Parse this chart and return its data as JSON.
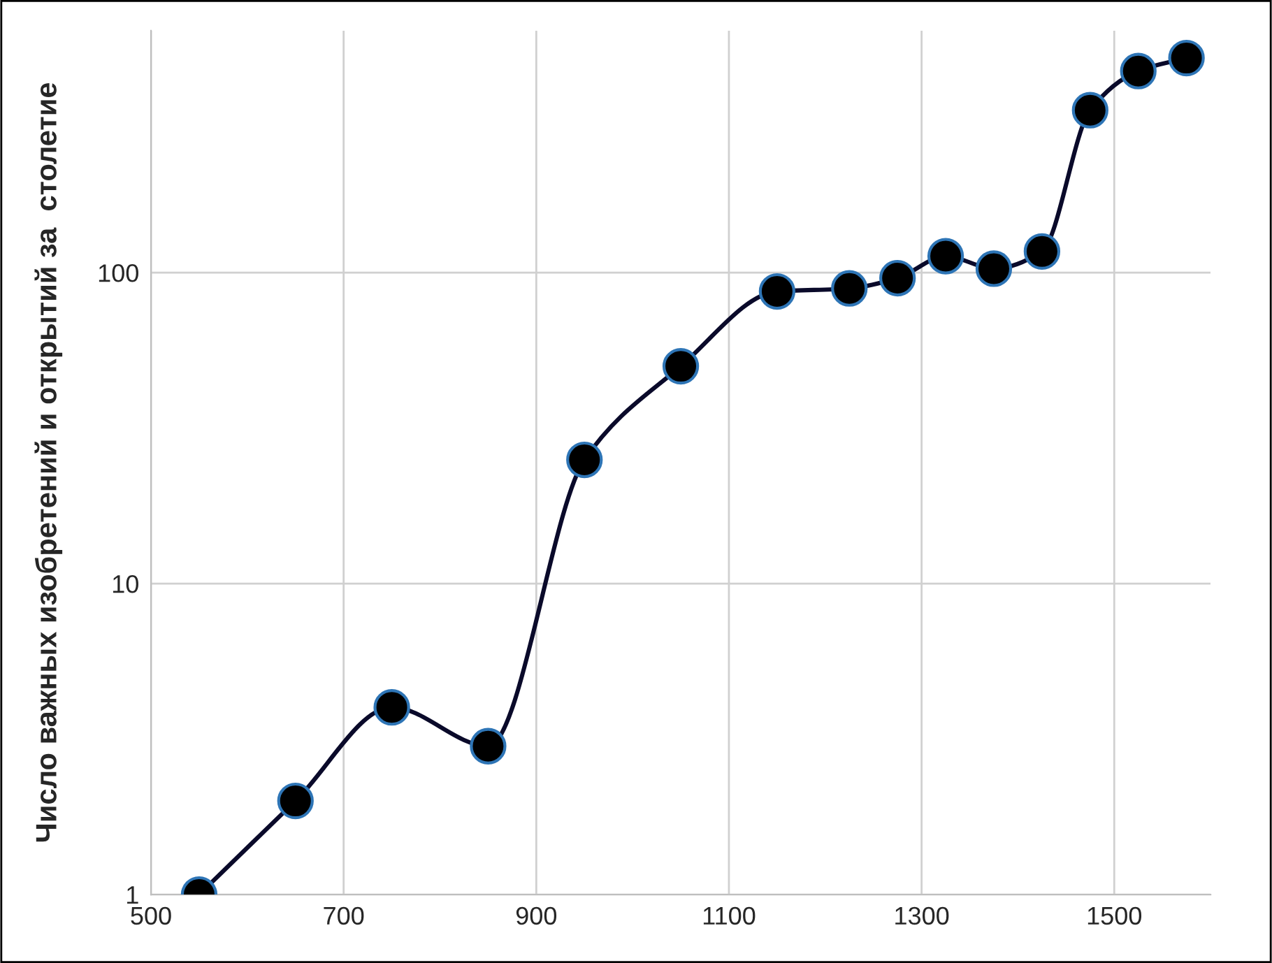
{
  "chart_data": {
    "type": "line",
    "ylabel": "Число важных изобретений и открытий за  столетие",
    "log": "y",
    "xlim": [
      500,
      1600
    ],
    "xticks": [
      500,
      700,
      900,
      1100,
      1300,
      1500
    ],
    "ylim": [
      1,
      600
    ],
    "yticks": [
      1,
      10,
      100
    ],
    "grid": true,
    "marker": "circle",
    "line_style": "solid",
    "series": [
      {
        "color": "#000000",
        "x": [
          550,
          650,
          750,
          850,
          950,
          1050,
          1150,
          1225,
          1275,
          1325,
          1375,
          1425,
          1475,
          1525,
          1575
        ],
        "values": [
          1,
          2,
          4,
          3,
          25,
          50,
          87,
          89,
          96,
          113,
          103,
          117,
          333,
          445,
          490
        ]
      }
    ]
  }
}
